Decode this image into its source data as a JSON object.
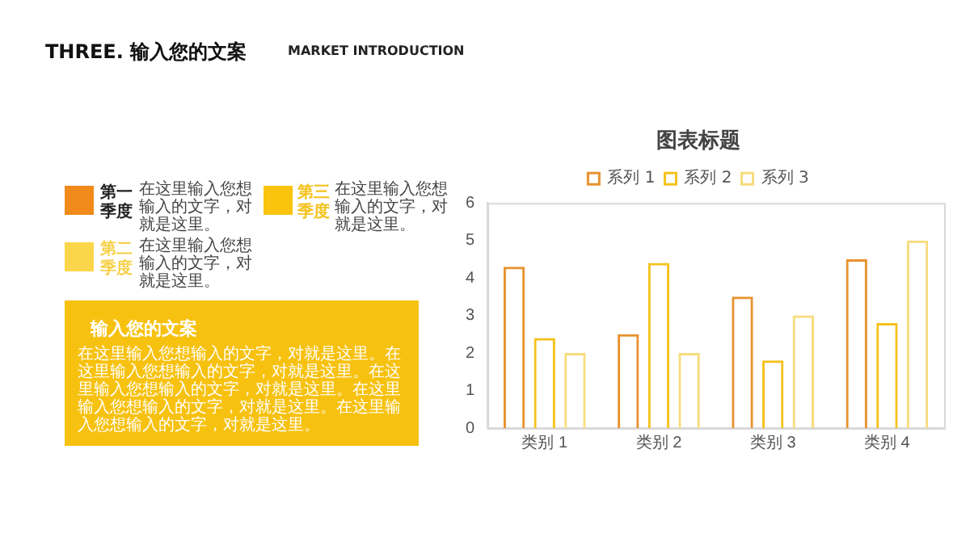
{
  "chart_data": {
    "type": "bar",
    "title": "图表标题",
    "categories": [
      "类别 1",
      "类别 2",
      "类别 3",
      "类别 4"
    ],
    "series": [
      {
        "name": "系列 1",
        "color": "#e8922e",
        "values": [
          4.3,
          2.5,
          3.5,
          4.5
        ]
      },
      {
        "name": "系列 2",
        "color": "#f4c21c",
        "values": [
          2.4,
          4.4,
          1.8,
          2.8
        ]
      },
      {
        "name": "系列 3",
        "color": "#f7dc7c",
        "values": [
          2,
          2,
          3,
          5
        ]
      }
    ],
    "ylim": [
      0,
      6
    ],
    "yticks": [
      0,
      1,
      2,
      3,
      4,
      5,
      6
    ],
    "grid": false,
    "legend": "top",
    "annotations": [
      "THREE. 输入您的文案",
      "MARKET INTRODUCTION",
      "第一季度",
      "在这里输入您想输入的文字，对就是这里。",
      "第三季度",
      "在这里输入您想输入的文字，对就是这里。",
      "第二季度",
      "在这里输入您想输入的文字，对就是这里。",
      "输入您的文案",
      "在这里输入您想输入的文字，对就是这里。在这里输入您想输入的文字，对就是这里。在这里输入您想输入的文字，对就是这里。在这里输入您想输入的文字，对就是这里。在这里输入您想输入的文字，对就是这里。"
    ]
  }
}
